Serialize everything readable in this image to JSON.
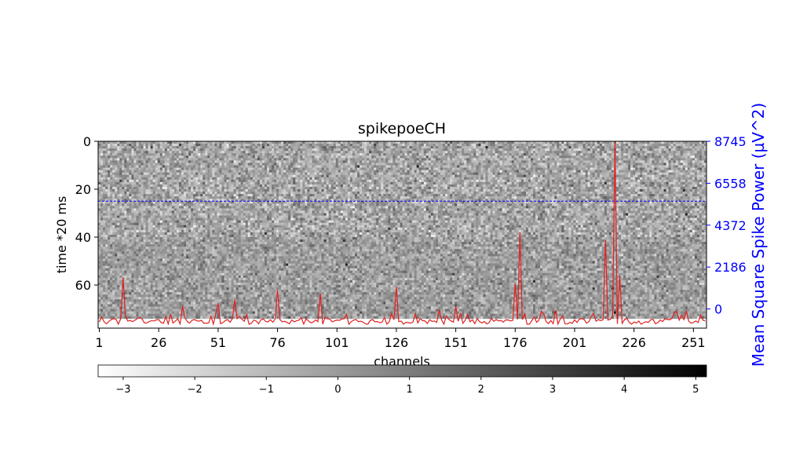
{
  "chart_data": {
    "type": "heatmap",
    "title": "spikepoeCH",
    "xlabel": "channels",
    "ylabel": "time *20 ms",
    "y2label": "Mean Square Spike Power (µV^2)",
    "x_ticks": [
      "1",
      "26",
      "51",
      "76",
      "101",
      "126",
      "151",
      "176",
      "201",
      "226",
      "251"
    ],
    "x_tick_values": [
      1,
      26,
      51,
      76,
      101,
      126,
      151,
      176,
      201,
      226,
      251
    ],
    "y_ticks": [
      "0",
      "20",
      "40",
      "60"
    ],
    "y_tick_values": [
      0,
      20,
      40,
      60
    ],
    "y2_ticks": [
      "8745",
      "6558",
      "4372",
      "2186",
      "0"
    ],
    "y2_tick_values": [
      8745,
      6558,
      4372,
      2186,
      0
    ],
    "colorbar_ticks": [
      "−3",
      "−2",
      "−1",
      "0",
      "1",
      "2",
      "3",
      "4",
      "5"
    ],
    "colorbar_tick_values": [
      -3,
      -2,
      -1,
      0,
      1,
      2,
      3,
      4,
      5
    ],
    "colorbar_range": [
      -3.35,
      5.15
    ],
    "xlim": [
      0.5,
      256.5
    ],
    "ylim": [
      78,
      0
    ],
    "y2lim": [
      -1000,
      8745
    ],
    "heatmap": {
      "channels": 256,
      "time_bins": 74,
      "colormap": "gray_r",
      "dense_region": {
        "time_from": 40,
        "time_to": 74
      }
    },
    "threshold_line": {
      "time": 25,
      "color": "#0000ff",
      "style": "dashed"
    },
    "series": [
      {
        "color": "#e02020",
        "axis": "y2",
        "spikes": [
          {
            "channel": 11,
            "value": 1650
          },
          {
            "channel": 36,
            "value": 150
          },
          {
            "channel": 51,
            "value": 300
          },
          {
            "channel": 58,
            "value": 500
          },
          {
            "channel": 76,
            "value": 1000
          },
          {
            "channel": 94,
            "value": 800
          },
          {
            "channel": 126,
            "value": 1150
          },
          {
            "channel": 151,
            "value": 150
          },
          {
            "channel": 176,
            "value": 1300
          },
          {
            "channel": 178,
            "value": 4000
          },
          {
            "channel": 214,
            "value": 3600
          },
          {
            "channel": 218,
            "value": 8745
          },
          {
            "channel": 220,
            "value": 1700
          },
          {
            "channel": 244,
            "value": -150
          }
        ],
        "baseline": [
          -800,
          -500
        ]
      }
    ],
    "colors": {
      "series": "#e02020",
      "threshold": "#0000ff",
      "right_axis": "#0000ff"
    }
  }
}
